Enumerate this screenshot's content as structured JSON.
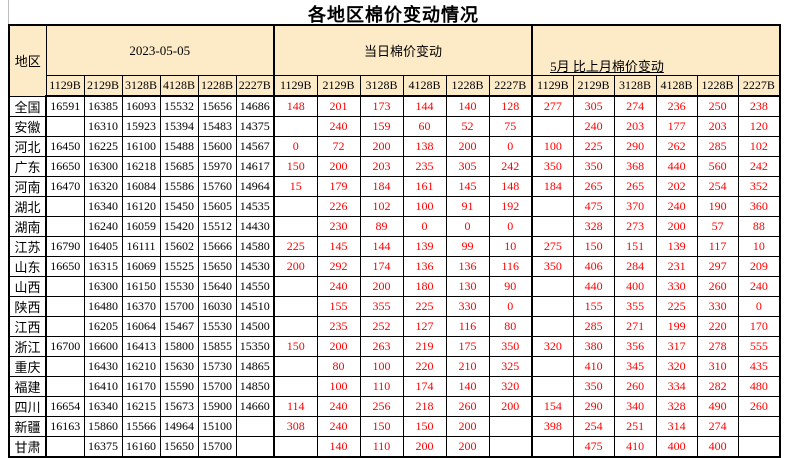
{
  "title": "各地区棉价变动情况",
  "colors": {
    "header_bg": "#FDEBC8",
    "change_text": "#FF0000",
    "body_text": "#000000",
    "border": "#000000"
  },
  "table": {
    "region_header": "地区",
    "groups": [
      {
        "label": "2023-05-05"
      },
      {
        "label": "当日棉价变动"
      },
      {
        "label": "5月 比上月棉价变动"
      }
    ],
    "grade_columns": [
      "1129B",
      "2129B",
      "3128B",
      "4128B",
      "1228B",
      "2227B"
    ],
    "rows": [
      {
        "region": "全国",
        "price": [
          "16591",
          "16385",
          "16093",
          "15532",
          "15656",
          "14686"
        ],
        "daily": [
          "148",
          "201",
          "173",
          "144",
          "140",
          "128"
        ],
        "monthly": [
          "277",
          "305",
          "274",
          "236",
          "250",
          "238"
        ]
      },
      {
        "region": "安徽",
        "price": [
          "",
          "16310",
          "15923",
          "15394",
          "15483",
          "14375"
        ],
        "daily": [
          "",
          "240",
          "159",
          "60",
          "52",
          "75"
        ],
        "monthly": [
          "",
          "240",
          "203",
          "177",
          "203",
          "120"
        ]
      },
      {
        "region": "河北",
        "price": [
          "16450",
          "16225",
          "16100",
          "15488",
          "15600",
          "14567"
        ],
        "daily": [
          "0",
          "72",
          "200",
          "138",
          "200",
          "0"
        ],
        "monthly": [
          "100",
          "225",
          "290",
          "262",
          "285",
          "102"
        ]
      },
      {
        "region": "广东",
        "price": [
          "16650",
          "16300",
          "16218",
          "15685",
          "15970",
          "14617"
        ],
        "daily": [
          "150",
          "200",
          "203",
          "235",
          "305",
          "242"
        ],
        "monthly": [
          "350",
          "350",
          "368",
          "440",
          "560",
          "242"
        ]
      },
      {
        "region": "河南",
        "price": [
          "16470",
          "16320",
          "16084",
          "15586",
          "15760",
          "14964"
        ],
        "daily": [
          "15",
          "179",
          "184",
          "161",
          "145",
          "148"
        ],
        "monthly": [
          "184",
          "265",
          "265",
          "202",
          "254",
          "352"
        ]
      },
      {
        "region": "湖北",
        "price": [
          "",
          "16340",
          "16120",
          "15450",
          "15605",
          "14535"
        ],
        "daily": [
          "",
          "226",
          "102",
          "100",
          "91",
          "192"
        ],
        "monthly": [
          "",
          "475",
          "370",
          "240",
          "190",
          "360"
        ]
      },
      {
        "region": "湖南",
        "price": [
          "",
          "16240",
          "16059",
          "15420",
          "15512",
          "14430"
        ],
        "daily": [
          "",
          "230",
          "89",
          "0",
          "0",
          "0"
        ],
        "monthly": [
          "",
          "328",
          "273",
          "200",
          "57",
          "88"
        ]
      },
      {
        "region": "江苏",
        "price": [
          "16790",
          "16405",
          "16111",
          "15602",
          "15666",
          "14580"
        ],
        "daily": [
          "225",
          "145",
          "144",
          "139",
          "99",
          "10"
        ],
        "monthly": [
          "275",
          "150",
          "151",
          "139",
          "117",
          "10"
        ]
      },
      {
        "region": "山东",
        "price": [
          "16650",
          "16315",
          "16069",
          "15525",
          "15650",
          "14530"
        ],
        "daily": [
          "200",
          "292",
          "174",
          "136",
          "136",
          "116"
        ],
        "monthly": [
          "350",
          "406",
          "284",
          "231",
          "297",
          "209"
        ]
      },
      {
        "region": "山西",
        "price": [
          "",
          "16300",
          "16150",
          "15530",
          "15640",
          "14550"
        ],
        "daily": [
          "",
          "240",
          "200",
          "180",
          "130",
          "90"
        ],
        "monthly": [
          "",
          "440",
          "400",
          "330",
          "260",
          "240"
        ]
      },
      {
        "region": "陕西",
        "price": [
          "",
          "16480",
          "16370",
          "15700",
          "16030",
          "14510"
        ],
        "daily": [
          "",
          "155",
          "355",
          "225",
          "330",
          "0"
        ],
        "monthly": [
          "",
          "155",
          "355",
          "225",
          "330",
          "0"
        ]
      },
      {
        "region": "江西",
        "price": [
          "",
          "16205",
          "16064",
          "15467",
          "15530",
          "14500"
        ],
        "daily": [
          "",
          "235",
          "252",
          "127",
          "116",
          "80"
        ],
        "monthly": [
          "",
          "285",
          "271",
          "199",
          "220",
          "170"
        ]
      },
      {
        "region": "浙江",
        "price": [
          "16700",
          "16600",
          "16413",
          "15800",
          "15855",
          "15350"
        ],
        "daily": [
          "150",
          "200",
          "263",
          "219",
          "175",
          "350"
        ],
        "monthly": [
          "320",
          "380",
          "356",
          "317",
          "278",
          "555"
        ]
      },
      {
        "region": "重庆",
        "price": [
          "",
          "16430",
          "16210",
          "15630",
          "15730",
          "14865"
        ],
        "daily": [
          "",
          "80",
          "100",
          "220",
          "210",
          "325"
        ],
        "monthly": [
          "",
          "410",
          "345",
          "320",
          "310",
          "435"
        ]
      },
      {
        "region": "福建",
        "price": [
          "",
          "16410",
          "16170",
          "15590",
          "15700",
          "14850"
        ],
        "daily": [
          "",
          "100",
          "110",
          "174",
          "140",
          "320"
        ],
        "monthly": [
          "",
          "350",
          "260",
          "334",
          "282",
          "480"
        ]
      },
      {
        "region": "四川",
        "price": [
          "16654",
          "16340",
          "16215",
          "15673",
          "15900",
          "14660"
        ],
        "daily": [
          "114",
          "240",
          "256",
          "218",
          "260",
          "200"
        ],
        "monthly": [
          "154",
          "290",
          "340",
          "328",
          "490",
          "260"
        ]
      },
      {
        "region": "新疆",
        "price": [
          "16163",
          "15860",
          "15566",
          "14964",
          "15100",
          ""
        ],
        "daily": [
          "308",
          "240",
          "150",
          "150",
          "200",
          ""
        ],
        "monthly": [
          "398",
          "254",
          "251",
          "314",
          "274",
          ""
        ]
      },
      {
        "region": "甘肃",
        "price": [
          "",
          "16375",
          "16160",
          "15650",
          "15700",
          ""
        ],
        "daily": [
          "",
          "140",
          "110",
          "200",
          "200",
          ""
        ],
        "monthly": [
          "",
          "475",
          "410",
          "400",
          "400",
          ""
        ]
      }
    ]
  }
}
